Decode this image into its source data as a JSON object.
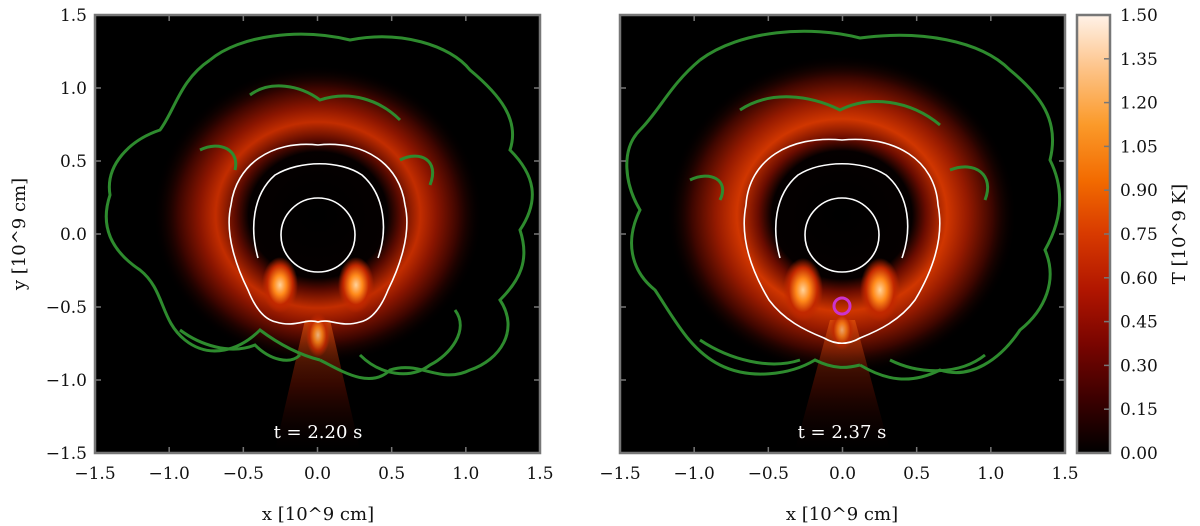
{
  "chart_data": [
    {
      "type": "heatmap",
      "panel": "left",
      "time_label": "t = 2.20 s",
      "xlabel": "x [10^9 cm]",
      "ylabel": "y [10^9 cm]",
      "xlim": [
        -1.5,
        1.5
      ],
      "ylim": [
        -1.5,
        1.5
      ],
      "xticks": [
        -1.5,
        -1.0,
        -0.5,
        0.0,
        0.5,
        1.0,
        1.5
      ],
      "yticks": [
        -1.5,
        -1.0,
        -0.5,
        0.0,
        0.5,
        1.0,
        1.5
      ],
      "xtick_labels": [
        "−1.5",
        "−1.0",
        "−0.5",
        "0.0",
        "0.5",
        "1.0",
        "1.5"
      ],
      "ytick_labels": [
        "−1.5",
        "−1.0",
        "−0.5",
        "0.0",
        "0.5",
        "1.0",
        "1.5"
      ],
      "core_circle_radius": 0.25,
      "hot_shell_radius": 0.55,
      "hot_spots": [
        {
          "x": -0.25,
          "y": -0.45,
          "T": 1.0
        },
        {
          "x": 0.25,
          "y": -0.45,
          "T": 1.0
        },
        {
          "x": 0.0,
          "y": -0.75,
          "T": 0.7
        }
      ],
      "detonation_marker": null,
      "grid": false
    },
    {
      "type": "heatmap",
      "panel": "right",
      "time_label": "t = 2.37 s",
      "xlabel": "x [10^9 cm]",
      "ylabel": "",
      "xlim": [
        -1.5,
        1.5
      ],
      "ylim": [
        -1.5,
        1.5
      ],
      "xticks": [
        -1.5,
        -1.0,
        -0.5,
        0.0,
        0.5,
        1.0,
        1.5
      ],
      "yticks": [
        -1.5,
        -1.0,
        -0.5,
        0.0,
        0.5,
        1.0,
        1.5
      ],
      "xtick_labels": [
        "−1.5",
        "−1.0",
        "−0.5",
        "0.0",
        "0.5",
        "1.0",
        "1.5"
      ],
      "ytick_labels": [],
      "core_circle_radius": 0.25,
      "hot_shell_radius": 0.6,
      "hot_spots": [
        {
          "x": -0.25,
          "y": -0.45,
          "T": 1.1
        },
        {
          "x": 0.25,
          "y": -0.45,
          "T": 1.1
        },
        {
          "x": 0.0,
          "y": -0.7,
          "T": 0.6
        }
      ],
      "detonation_marker": {
        "x": 0.0,
        "y": -0.5,
        "color": "#cc33cc"
      },
      "grid": false
    }
  ],
  "colorbar": {
    "label": "T [10^9 K]",
    "min": 0.0,
    "max": 1.5,
    "ticks": [
      0.0,
      0.15,
      0.3,
      0.45,
      0.6,
      0.75,
      0.9,
      1.05,
      1.2,
      1.35,
      1.5
    ],
    "tick_labels": [
      "0.00",
      "0.15",
      "0.30",
      "0.45",
      "0.60",
      "0.75",
      "0.90",
      "1.05",
      "1.20",
      "1.35",
      "1.50"
    ],
    "colormap": [
      "#000000",
      "#3a0000",
      "#7a0500",
      "#b01500",
      "#d83a00",
      "#f26a00",
      "#fb9a2a",
      "#fdc48a",
      "#fff2e8"
    ]
  },
  "colors": {
    "contour_green": "#2e8b2e",
    "contour_white": "#ffffff",
    "axes_frame": "#777777"
  }
}
